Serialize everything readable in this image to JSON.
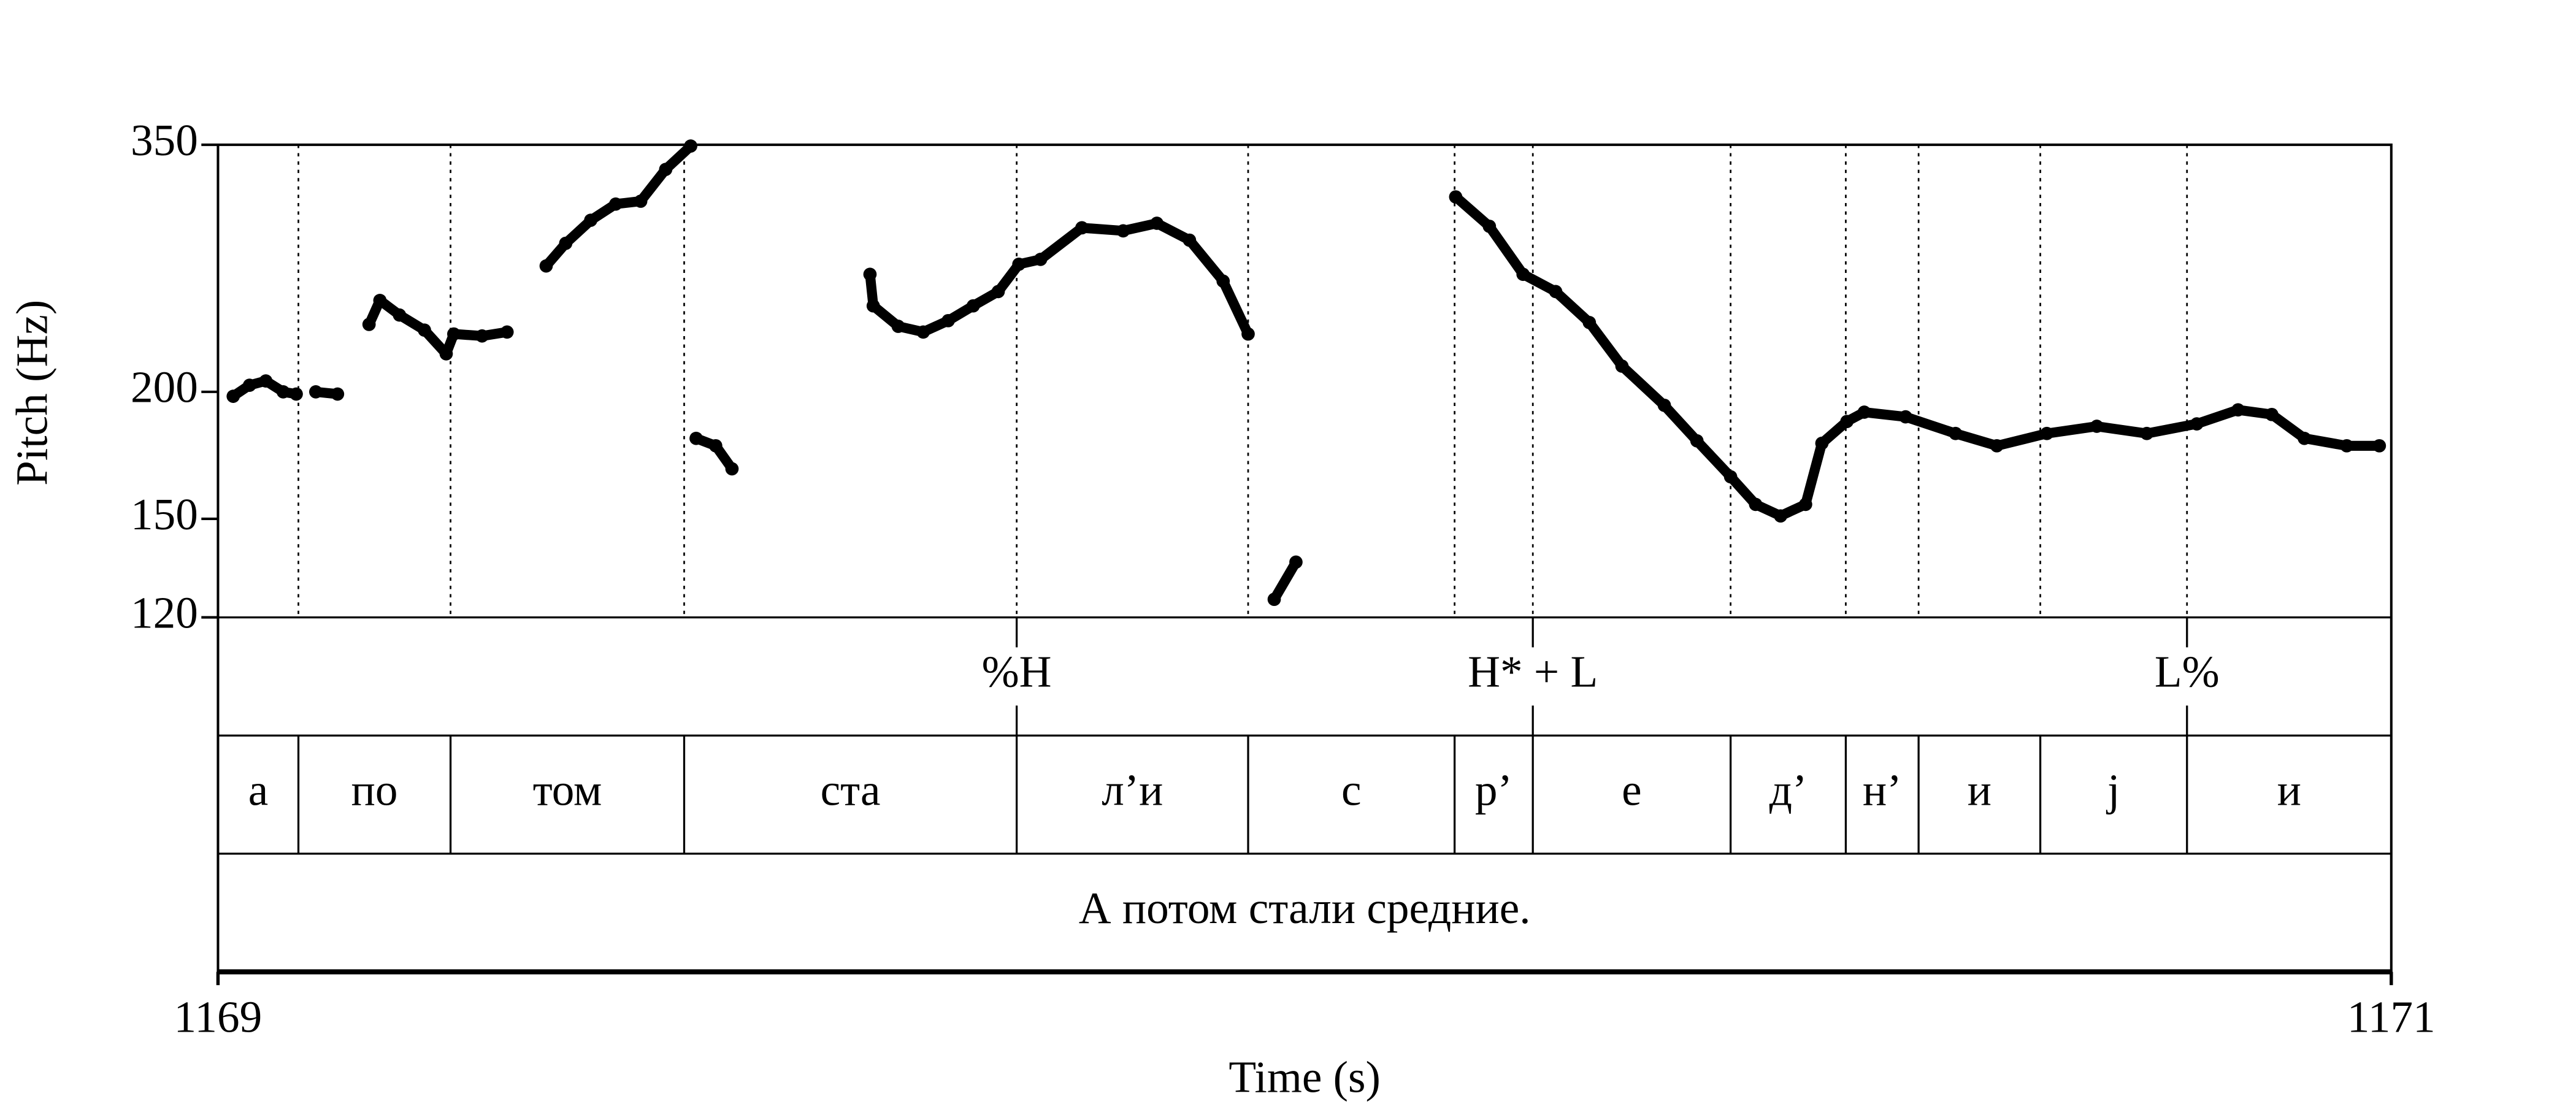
{
  "chart_data": {
    "type": "scatter",
    "xlabel": "Time (s)",
    "ylabel": "Pitch (Hz)",
    "xlim": [
      1169,
      1171
    ],
    "xticks": [
      1169,
      1171
    ],
    "ylim": [
      120,
      350
    ],
    "yticks": [
      120,
      150,
      200,
      350
    ],
    "y_scale": "log",
    "color": "#000000",
    "x": [
      1169.014,
      1169.029,
      1169.044,
      1169.06,
      1169.072,
      1169.083,
      1169.09,
      1169.11,
      1169.124,
      1169.139,
      1169.149,
      1169.167,
      1169.19,
      1169.21,
      1169.217,
      1169.243,
      1169.266,
      1169.283,
      1169.302,
      1169.32,
      1169.343,
      1169.366,
      1169.389,
      1169.412,
      1169.435,
      1169.438,
      1169.44,
      1169.458,
      1169.473,
      1169.534,
      1169.6,
      1169.603,
      1169.626,
      1169.649,
      1169.672,
      1169.695,
      1169.718,
      1169.737,
      1169.757,
      1169.795,
      1169.833,
      1169.864,
      1169.894,
      1169.925,
      1169.948,
      1169.96,
      1169.972,
      1169.992,
      1170.055,
      1170.139,
      1170.17,
      1170.201,
      1170.231,
      1170.262,
      1170.292,
      1170.331,
      1170.361,
      1170.392,
      1170.415,
      1170.438,
      1170.461,
      1170.476,
      1170.499,
      1170.515,
      1170.553,
      1170.599,
      1170.637,
      1170.683,
      1170.729,
      1170.775,
      1170.821,
      1170.859,
      1170.89,
      1170.92,
      1170.959,
      1170.989
    ],
    "values": [
      198,
      203,
      205,
      200,
      199,
      null,
      200,
      199,
      null,
      233,
      246,
      238,
      230,
      218,
      228,
      227,
      229,
      null,
      266,
      280,
      295,
      306,
      308,
      331,
      349,
      null,
      180,
      177,
      168,
      null,
      261,
      243,
      232,
      229,
      235,
      243,
      251,
      267,
      270,
      290,
      288,
      293,
      282,
      257,
      228,
      null,
      125,
      136,
      null,
      311,
      291,
      261,
      251,
      234,
      212,
      194,
      179,
      165,
      155,
      151,
      155,
      178,
      187,
      191,
      189,
      182,
      177,
      182,
      185,
      182,
      186,
      192,
      190,
      180,
      177,
      177
    ],
    "tone_tier": {
      "times": [
        1169.735,
        1170.21,
        1170.812
      ],
      "labels": [
        "%H",
        "H* + L",
        "L%"
      ]
    },
    "segment_tier": {
      "boundaries": [
        1169.074,
        1169.214,
        1169.429,
        1169.735,
        1169.948,
        1170.138,
        1170.21,
        1170.392,
        1170.498,
        1170.565,
        1170.677,
        1170.812
      ],
      "labels": [
        "а",
        "по",
        "том",
        "ста",
        "л’и",
        "с",
        "р’",
        "е",
        "д’",
        "н’",
        "и",
        "j",
        "и"
      ]
    },
    "word_tier": {
      "labels": [
        "А потом стали средние."
      ]
    }
  }
}
